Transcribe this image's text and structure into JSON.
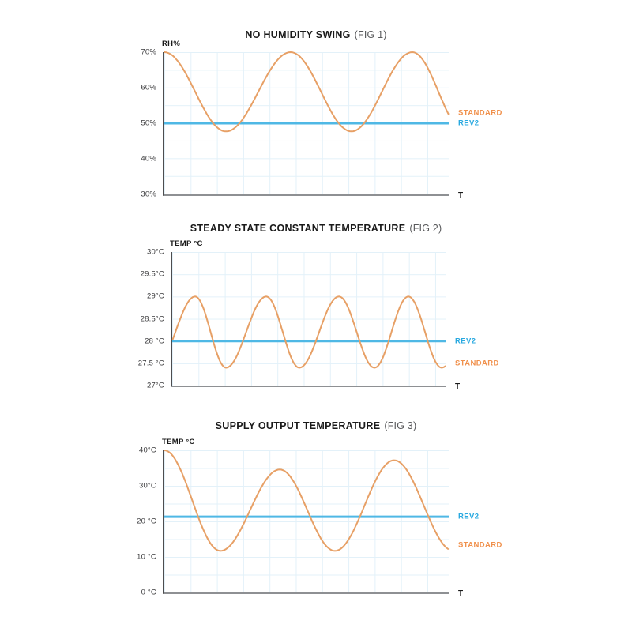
{
  "colors": {
    "standard_line": "#E7A066",
    "standard_label": "#F0914D",
    "rev2_line": "#4FB8E5",
    "rev2_label": "#29A9E0",
    "grid": "#E3F1F9",
    "y_axis": "#4D4D4F",
    "x_axis": "#8E9093",
    "title": "#1A1A1A",
    "fig": "#58595B",
    "tick": "#3A3A3C"
  },
  "chart_data": [
    {
      "type": "line",
      "title": "NO HUMIDITY SWING",
      "fig": "(FIG 1)",
      "ylabel": "RH%",
      "xlabel": "T",
      "ylim": [
        30,
        70
      ],
      "grid": true,
      "legend_position": "right",
      "y_ticks": [
        {
          "label": "70%",
          "value": 70
        },
        {
          "label": "60%",
          "value": 60
        },
        {
          "label": "50%",
          "value": 50
        },
        {
          "label": "40%",
          "value": 40
        },
        {
          "label": "30%",
          "value": 30
        }
      ],
      "series": [
        {
          "name": "STANDARD",
          "type": "wave",
          "label_value": 53,
          "extrema": [
            {
              "x": 0.0,
              "v": 70
            },
            {
              "x": 0.217,
              "v": 47.7
            },
            {
              "x": 0.444,
              "v": 70
            },
            {
              "x": 0.658,
              "v": 47.7
            },
            {
              "x": 0.872,
              "v": 70
            },
            {
              "x": 1.056,
              "v": 47.7
            }
          ]
        },
        {
          "name": "REV2",
          "type": "constant",
          "value": 50
        }
      ]
    },
    {
      "type": "line",
      "title": "STEADY STATE CONSTANT TEMPERATURE",
      "fig": "(FIG 2)",
      "ylabel": "TEMP °C",
      "xlabel": "T",
      "ylim": [
        27,
        30
      ],
      "grid": true,
      "legend_position": "right",
      "y_ticks": [
        {
          "label": "30°C",
          "value": 30
        },
        {
          "label": "29.5°C",
          "value": 29.5
        },
        {
          "label": "29°C",
          "value": 29
        },
        {
          "label": "28.5°C",
          "value": 28.5
        },
        {
          "label": "28 °C",
          "value": 28
        },
        {
          "label": "27.5 °C",
          "value": 27.5
        },
        {
          "label": "27°C",
          "value": 27
        }
      ],
      "series": [
        {
          "name": "STANDARD",
          "type": "wave",
          "label_value": 27.5,
          "extrema": [
            {
              "x": -0.061,
              "v": 27.4
            },
            {
              "x": 0.084,
              "v": 29
            },
            {
              "x": 0.197,
              "v": 27.4
            },
            {
              "x": 0.344,
              "v": 29
            },
            {
              "x": 0.465,
              "v": 27.4
            },
            {
              "x": 0.61,
              "v": 29
            },
            {
              "x": 0.74,
              "v": 27.4
            },
            {
              "x": 0.864,
              "v": 29
            },
            {
              "x": 0.986,
              "v": 27.4
            },
            {
              "x": 1.124,
              "v": 29
            }
          ]
        },
        {
          "name": "REV2",
          "type": "constant",
          "value": 28
        }
      ]
    },
    {
      "type": "line",
      "title": "SUPPLY OUTPUT TEMPERATURE",
      "fig": "(FIG 3)",
      "ylabel": "TEMP °C",
      "xlabel": "T",
      "ylim": [
        0,
        40
      ],
      "grid": true,
      "legend_position": "right",
      "y_ticks": [
        {
          "label": "40°C",
          "value": 40
        },
        {
          "label": "30°C",
          "value": 30
        },
        {
          "label": "20 °C",
          "value": 20
        },
        {
          "label": "10 °C",
          "value": 10
        },
        {
          "label": "0 °C",
          "value": 0
        }
      ],
      "series": [
        {
          "name": "STANDARD",
          "type": "wave",
          "label_value": 13.3,
          "extrema": [
            {
              "x": 0.0,
              "v": 40
            },
            {
              "x": 0.197,
              "v": 11.7
            },
            {
              "x": 0.406,
              "v": 34.6
            },
            {
              "x": 0.6,
              "v": 11.7
            },
            {
              "x": 0.808,
              "v": 37.2
            },
            {
              "x": 1.017,
              "v": 11.7
            }
          ]
        },
        {
          "name": "REV2",
          "type": "constant",
          "value": 21.3
        }
      ]
    }
  ]
}
